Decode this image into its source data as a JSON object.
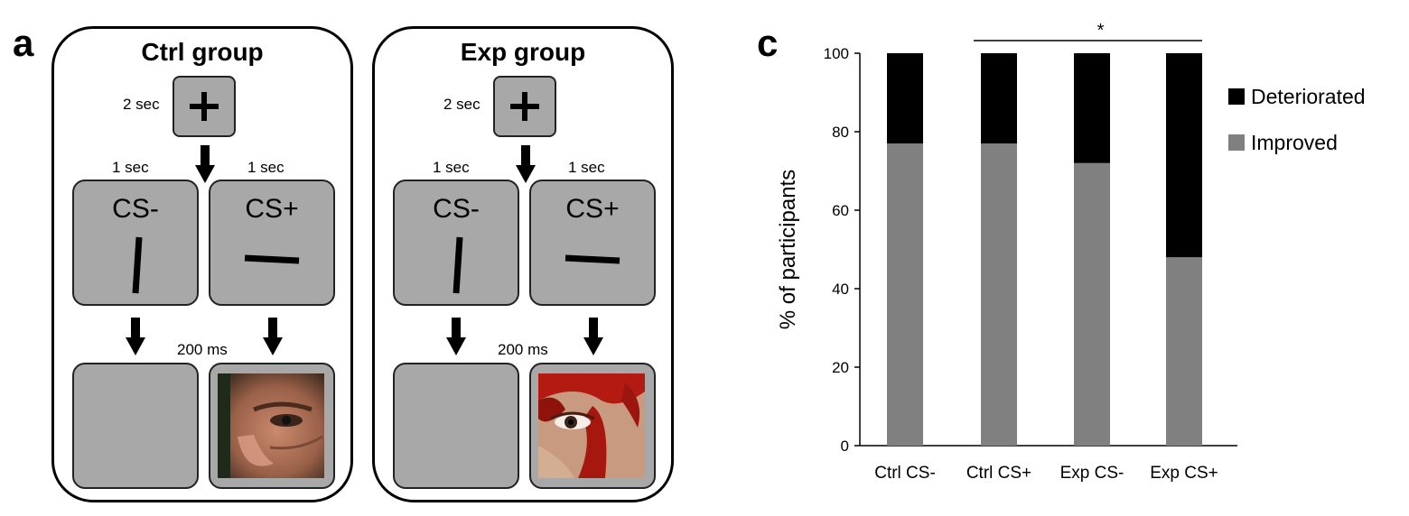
{
  "panels": {
    "a_letter": "a",
    "c_letter": "c"
  },
  "groups": [
    {
      "title": "Ctrl group",
      "fixation_duration": "2 sec",
      "fixation_symbol": "+",
      "cs_minus_label": "CS-",
      "cs_plus_label": "CS+",
      "cs_minus_duration": "1 sec",
      "cs_plus_duration": "1 sec",
      "outcome_duration": "200 ms",
      "outcome_image": "neutral-face-photo"
    },
    {
      "title": "Exp group",
      "fixation_duration": "2 sec",
      "fixation_symbol": "+",
      "cs_minus_label": "CS-",
      "cs_plus_label": "CS+",
      "cs_minus_duration": "1 sec",
      "cs_plus_duration": "1 sec",
      "outcome_duration": "200 ms",
      "outcome_image": "bloody-face-photo"
    }
  ],
  "chart_data": {
    "type": "bar",
    "stacked": true,
    "categories": [
      "Ctrl CS-",
      "Ctrl CS+",
      "Exp CS-",
      "Exp CS+"
    ],
    "series": [
      {
        "name": "Improved",
        "values": [
          77,
          77,
          72,
          48
        ],
        "color": "#808080"
      },
      {
        "name": "Deteriorated",
        "values": [
          23,
          23,
          28,
          52
        ],
        "color": "#000000"
      }
    ],
    "ylabel": "% of participants",
    "xlabel": "",
    "ylim": [
      0,
      100
    ],
    "yticks": [
      0,
      20,
      40,
      60,
      80,
      100
    ],
    "legend_position": "right",
    "legend_order": [
      "Deteriorated",
      "Improved"
    ],
    "significance": {
      "from": "Ctrl CS+",
      "to": "Exp CS+",
      "label": "*"
    },
    "grid": false
  }
}
